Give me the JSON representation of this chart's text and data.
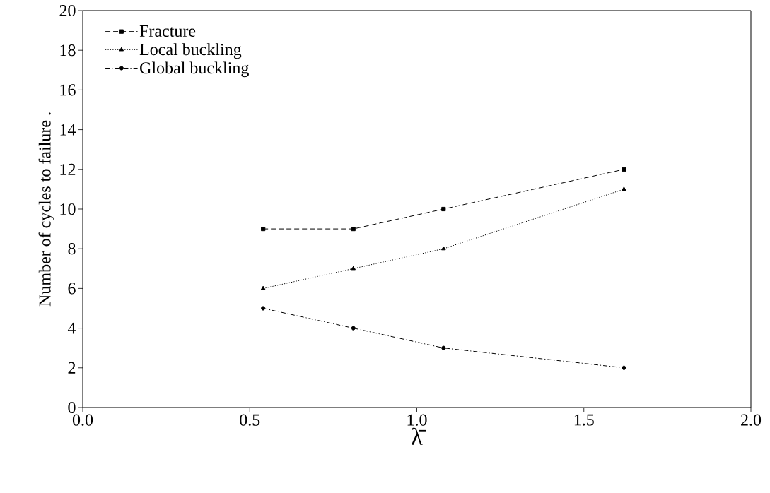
{
  "chart_data": {
    "type": "line",
    "xlabel": "λ̄",
    "ylabel": "Number of cycles to failure .",
    "x": [
      0.54,
      0.81,
      1.08,
      1.62
    ],
    "series": [
      {
        "name": "Fracture",
        "color": "#000000",
        "values": [
          9,
          9,
          10,
          12
        ],
        "marker": "square",
        "line_style": "dashed"
      },
      {
        "name": "Local buckling",
        "color": "#000000",
        "values": [
          6,
          7,
          8,
          11
        ],
        "marker": "triangle",
        "line_style": "dotted"
      },
      {
        "name": "Global buckling",
        "color": "#000000",
        "values": [
          5,
          4,
          3,
          2
        ],
        "marker": "circle",
        "line_style": "dashdot"
      }
    ],
    "xlim": [
      0,
      2
    ],
    "ylim": [
      0,
      20
    ],
    "xticks": [
      {
        "value": 0,
        "label": "0.0"
      },
      {
        "value": 0.5,
        "label": "0.5"
      },
      {
        "value": 1,
        "label": "1.0"
      },
      {
        "value": 1.5,
        "label": "1.5"
      },
      {
        "value": 2,
        "label": "2.0"
      }
    ],
    "yticks": [
      0,
      2,
      4,
      6,
      8,
      10,
      12,
      14,
      16,
      18,
      20
    ],
    "grid": false,
    "legend": "top left"
  }
}
